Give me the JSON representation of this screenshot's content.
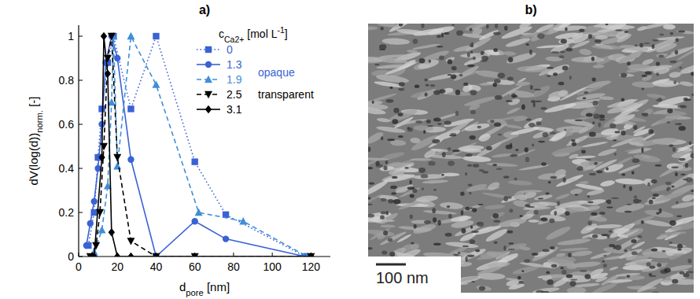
{
  "chart_data": {
    "type": "line",
    "title": "a)",
    "xlabel": "dpore [nm]",
    "ylabel": "dV(log(d))norm. [-]",
    "legend_title": "cCa2+ [mol L-1]",
    "legend": "upper right",
    "annotations": [
      "opaque",
      "transparent"
    ],
    "xlim": [
      0,
      130
    ],
    "xticks": [
      0,
      20,
      40,
      60,
      80,
      100,
      120
    ],
    "ylim": [
      0,
      1.05
    ],
    "yticks": [
      0,
      0.2,
      0.4,
      0.6,
      0.8,
      1
    ],
    "grid": false,
    "series": [
      {
        "name": "0",
        "color": "#3a62d4",
        "line_style": "dotted",
        "marker": "square",
        "x": [
          5,
          8,
          10,
          12,
          15,
          18,
          27,
          40,
          60,
          76,
          117
        ],
        "values": [
          0.05,
          0.2,
          0.45,
          0.67,
          0.88,
          1.0,
          0.67,
          1.0,
          0.43,
          0.19,
          0.0
        ]
      },
      {
        "name": "1.3",
        "color": "#3a62d4",
        "line_style": "solid",
        "marker": "circle",
        "x": [
          4,
          6,
          8,
          10,
          12,
          14,
          17,
          20,
          27,
          40,
          60,
          76,
          117
        ],
        "values": [
          0.05,
          0.15,
          0.25,
          0.4,
          0.6,
          0.88,
          1.0,
          0.9,
          0.44,
          0.0,
          0.16,
          0.08,
          0.0
        ]
      },
      {
        "name": "1.9",
        "color": "#3f8ed8",
        "line_style": "dashed",
        "marker": "triangle",
        "x": [
          8,
          12,
          15,
          17,
          18,
          20,
          27,
          40,
          62,
          85,
          118
        ],
        "values": [
          0.02,
          0.12,
          0.32,
          0.7,
          1.0,
          0.41,
          1.0,
          0.78,
          0.2,
          0.16,
          0.0
        ]
      },
      {
        "name": "2.5",
        "color": "#000000",
        "line_style": "dashed",
        "marker": "triangle-down",
        "x": [
          6,
          9,
          11,
          13,
          15,
          17,
          20,
          27,
          40,
          60,
          120
        ],
        "values": [
          0.0,
          0.05,
          0.2,
          0.5,
          0.9,
          1.0,
          0.45,
          0.07,
          0.0,
          0.0,
          0.0
        ]
      },
      {
        "name": "3.1",
        "color": "#000000",
        "line_style": "solid",
        "marker": "diamond",
        "x": [
          8,
          12,
          13,
          15,
          17,
          20,
          27,
          120
        ],
        "values": [
          0.0,
          0.45,
          1.0,
          0.83,
          0.11,
          0.0,
          0.0,
          0.0
        ]
      }
    ]
  },
  "image": {
    "title": "b)",
    "scale_bar": "100 nm"
  }
}
